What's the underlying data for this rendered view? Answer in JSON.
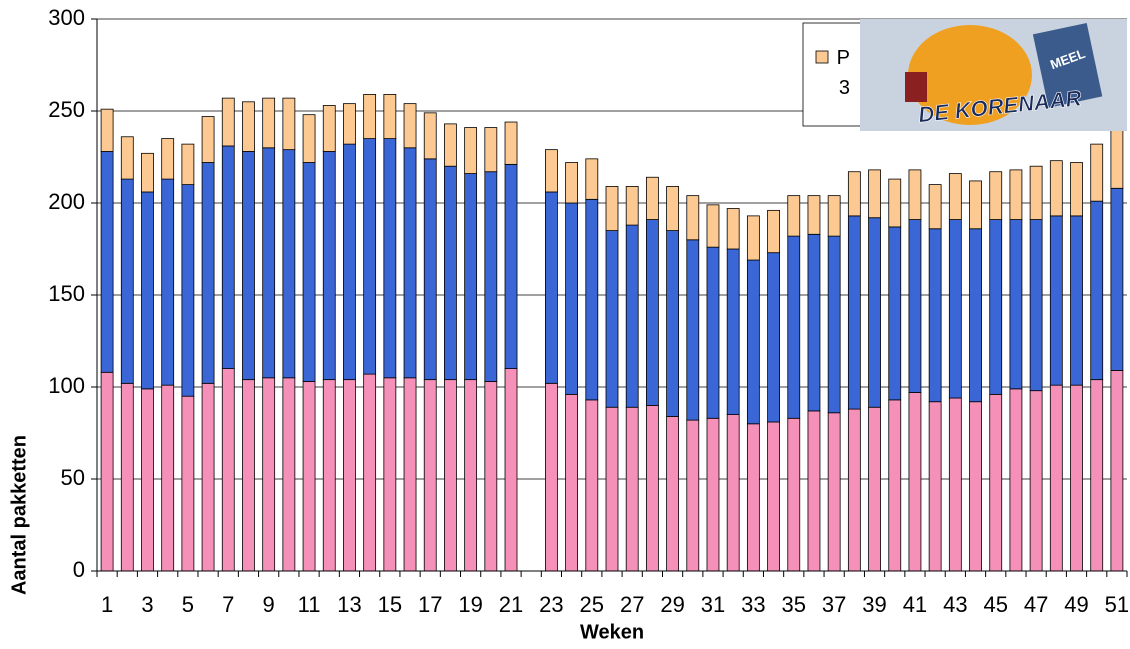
{
  "chart_data": {
    "type": "stacked_bar",
    "y_label": "Aantal pakketten",
    "x_label": "Weken",
    "categories": [
      1,
      null,
      3,
      null,
      5,
      null,
      7,
      null,
      9,
      null,
      11,
      null,
      13,
      null,
      15,
      null,
      17,
      null,
      19,
      null,
      21,
      null,
      23,
      null,
      25,
      null,
      27,
      null,
      29,
      null,
      31,
      null,
      33,
      null,
      35,
      null,
      37,
      null,
      39,
      null,
      41,
      null,
      43,
      null,
      45,
      null,
      47,
      null,
      49,
      null,
      51
    ],
    "series": [
      {
        "color": "#f590b9",
        "values": [
          108,
          102,
          99,
          101,
          95,
          102,
          110,
          104,
          105,
          105,
          103,
          104,
          104,
          107,
          105,
          105,
          104,
          104,
          104,
          103,
          110,
          null,
          102,
          96,
          93,
          89,
          89,
          90,
          84,
          82,
          83,
          85,
          80,
          81,
          83,
          87,
          86,
          88,
          89,
          93,
          97,
          92,
          94,
          92,
          96,
          99,
          98,
          101,
          101,
          104,
          109
        ]
      },
      {
        "color": "#3a66d6",
        "values": [
          120,
          111,
          107,
          112,
          115,
          120,
          121,
          124,
          125,
          124,
          119,
          124,
          128,
          128,
          130,
          125,
          120,
          116,
          112,
          114,
          111,
          null,
          104,
          104,
          109,
          96,
          99,
          101,
          101,
          98,
          93,
          90,
          89,
          92,
          99,
          96,
          96,
          105,
          103,
          94,
          94,
          94,
          97,
          94,
          95,
          92,
          93,
          92,
          92,
          97,
          99
        ]
      },
      {
        "name": "P 3",
        "color": "#fdc992",
        "values": [
          23,
          23,
          21,
          22,
          22,
          25,
          26,
          27,
          27,
          28,
          26,
          25,
          22,
          24,
          24,
          24,
          25,
          23,
          25,
          24,
          23,
          null,
          23,
          22,
          22,
          24,
          21,
          23,
          24,
          24,
          23,
          22,
          24,
          23,
          22,
          21,
          22,
          24,
          26,
          26,
          27,
          24,
          25,
          26,
          26,
          27,
          29,
          30,
          29,
          31,
          32
        ]
      }
    ],
    "ylim": [
      0,
      300
    ],
    "yticks": [
      0,
      50,
      100,
      150,
      200,
      250,
      300
    ],
    "grid": true
  },
  "logo": {
    "text": "DE KORENAAR",
    "label": "MEEL"
  }
}
